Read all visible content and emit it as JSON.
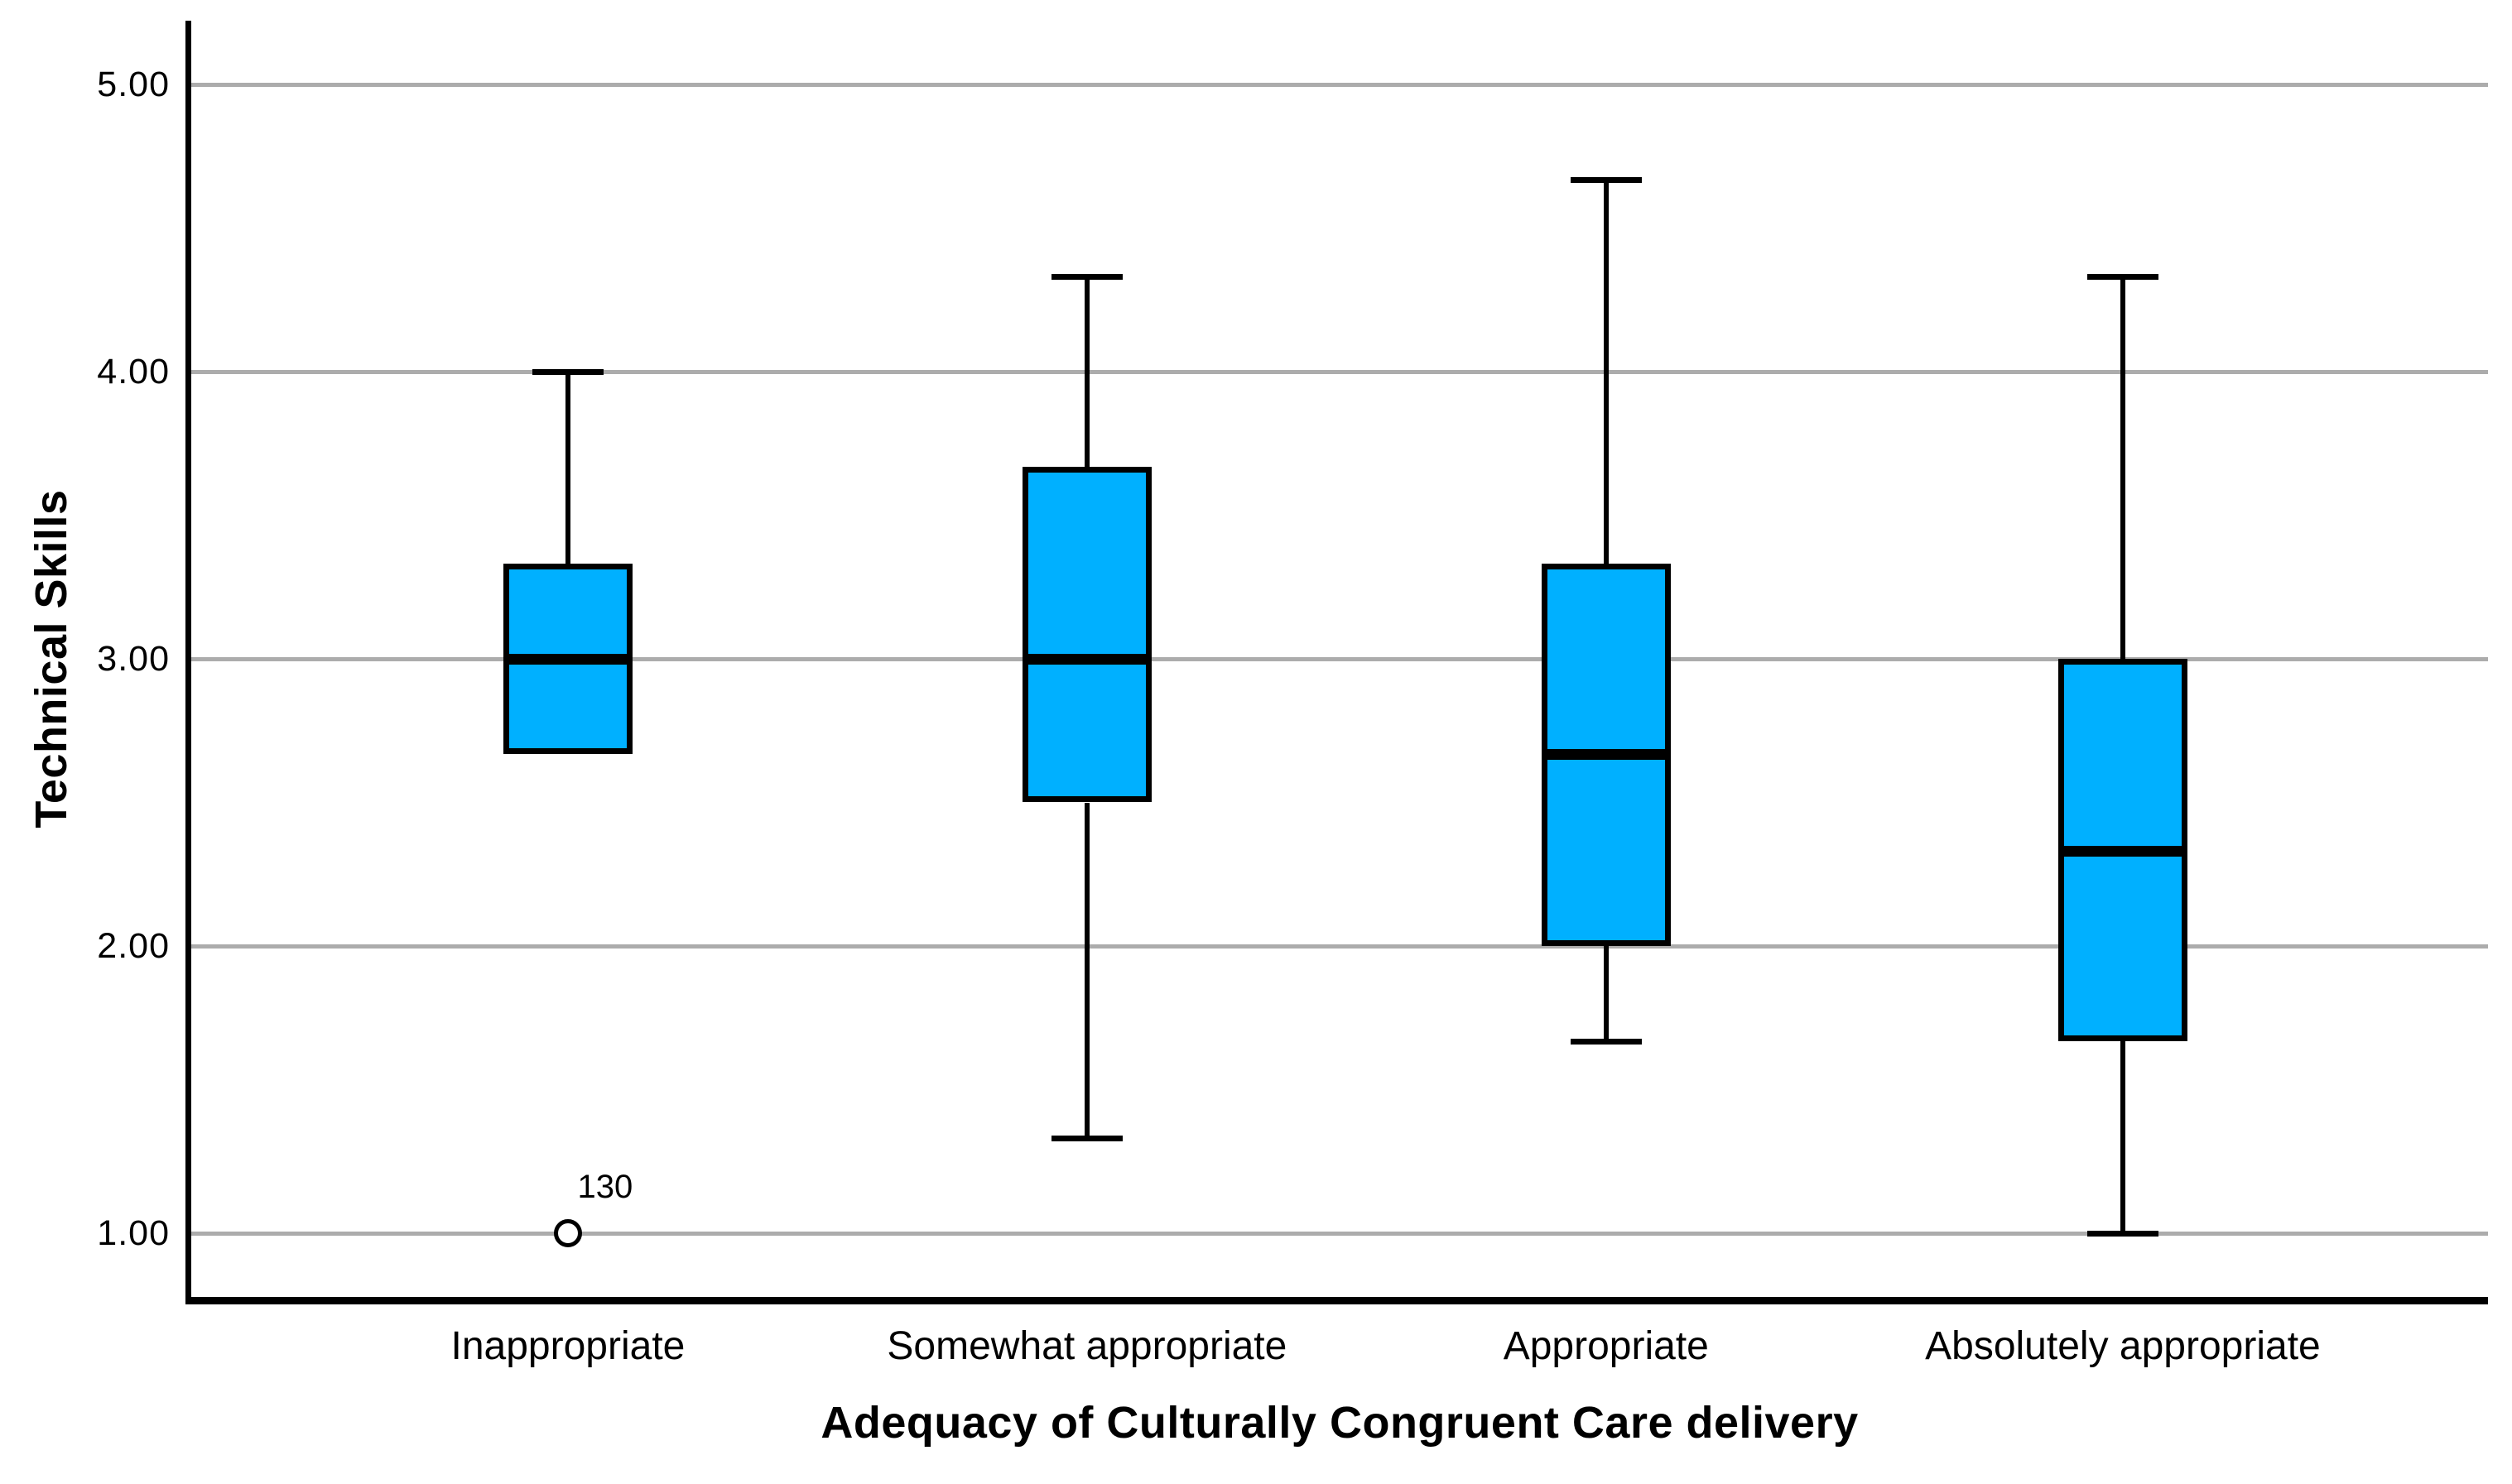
{
  "chart_data": {
    "type": "boxplot",
    "title": "",
    "xlabel": "Adequacy of Culturally Congruent Care delivery",
    "ylabel": "Technical Skills",
    "ylim": [
      0.78,
      5.22
    ],
    "grid": true,
    "legend": false,
    "yticks": [
      {
        "value": 1,
        "label": "1.00"
      },
      {
        "value": 2,
        "label": "2.00"
      },
      {
        "value": 3,
        "label": "3.00"
      },
      {
        "value": 4,
        "label": "4.00"
      },
      {
        "value": 5,
        "label": "5.00"
      }
    ],
    "categories": [
      "Inappropriate",
      "Somewhat appropriate",
      "Appropriate",
      "Absolutely appropriate"
    ],
    "boxes": [
      {
        "category": "Inappropriate",
        "whisker_low": null,
        "q1": 2.67,
        "median": 3.0,
        "q3": 3.33,
        "whisker_high": 4.0,
        "outliers": [
          {
            "value": 1.0,
            "label": "130",
            "marker": "circle"
          }
        ]
      },
      {
        "category": "Somewhat appropriate",
        "whisker_low": 1.33,
        "q1": 2.5,
        "median": 3.0,
        "q3": 3.67,
        "whisker_high": 4.33,
        "outliers": []
      },
      {
        "category": "Appropriate",
        "whisker_low": 1.67,
        "q1": 2.0,
        "median": 2.67,
        "q3": 3.33,
        "whisker_high": 4.67,
        "outliers": []
      },
      {
        "category": "Absolutely appropriate",
        "whisker_low": 1.0,
        "q1": 1.67,
        "median": 2.33,
        "q3": 3.0,
        "whisker_high": 4.33,
        "outliers": []
      }
    ],
    "colors": {
      "box_fill": "#00B0FF",
      "box_border": "#000000",
      "median": "#000000",
      "whisker": "#000000",
      "gridline": "#ACACAC",
      "axis": "#000000",
      "background": "#FFFFFF"
    }
  }
}
